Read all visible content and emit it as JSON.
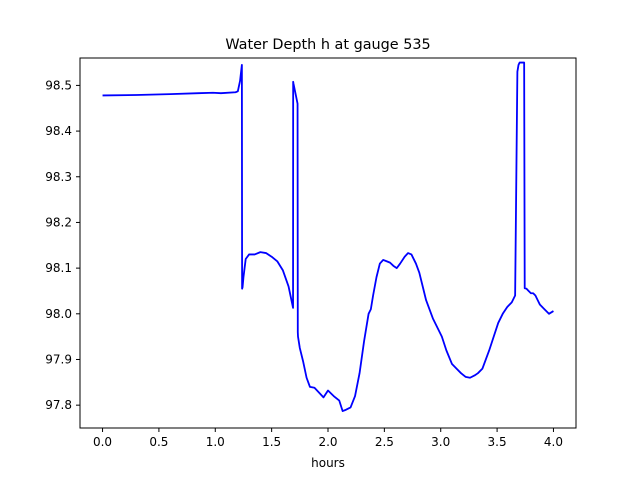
{
  "chart_data": {
    "type": "line",
    "title": "Water Depth h at gauge 535",
    "xlabel": "hours",
    "ylabel": "",
    "xlim": [
      -0.2,
      4.2
    ],
    "ylim": [
      97.75,
      98.56
    ],
    "xticks": [
      0.0,
      0.5,
      1.0,
      1.5,
      2.0,
      2.5,
      3.0,
      3.5,
      4.0
    ],
    "xtick_labels": [
      "0.0",
      "0.5",
      "1.0",
      "1.5",
      "2.0",
      "2.5",
      "3.0",
      "3.5",
      "4.0"
    ],
    "yticks": [
      97.8,
      97.9,
      98.0,
      98.1,
      98.2,
      98.3,
      98.4,
      98.5
    ],
    "ytick_labels": [
      "97.8",
      "97.9",
      "98.0",
      "98.1",
      "98.2",
      "98.3",
      "98.4",
      "98.5"
    ],
    "grid": false,
    "series": [
      {
        "color": "#0000ff",
        "x": [
          0.0,
          0.3,
          0.6,
          0.85,
          0.98,
          1.05,
          1.18,
          1.2,
          1.22,
          1.236,
          1.238,
          1.242,
          1.25,
          1.27,
          1.3,
          1.35,
          1.4,
          1.45,
          1.5,
          1.55,
          1.6,
          1.65,
          1.69,
          1.691,
          1.693,
          1.73,
          1.732,
          1.734,
          1.75,
          1.78,
          1.81,
          1.84,
          1.88,
          1.93,
          1.96,
          2.0,
          2.05,
          2.1,
          2.13,
          2.16,
          2.2,
          2.24,
          2.28,
          2.32,
          2.36,
          2.38,
          2.4,
          2.43,
          2.46,
          2.49,
          2.52,
          2.55,
          2.58,
          2.61,
          2.64,
          2.68,
          2.71,
          2.74,
          2.78,
          2.81,
          2.84,
          2.87,
          2.9,
          2.93,
          2.97,
          3.01,
          3.05,
          3.1,
          3.14,
          3.18,
          3.22,
          3.26,
          3.3,
          3.33,
          3.37,
          3.4,
          3.43,
          3.47,
          3.51,
          3.55,
          3.59,
          3.63,
          3.66,
          3.68,
          3.69,
          3.7,
          3.72,
          3.74,
          3.745,
          3.76,
          3.78,
          3.8,
          3.82,
          3.84,
          3.86,
          3.88,
          3.92,
          3.96,
          4.0
        ],
        "y": [
          98.478,
          98.479,
          98.481,
          98.483,
          98.484,
          98.483,
          98.485,
          98.487,
          98.51,
          98.545,
          98.055,
          98.058,
          98.08,
          98.12,
          98.13,
          98.13,
          98.135,
          98.133,
          98.125,
          98.115,
          98.095,
          98.06,
          98.013,
          98.508,
          98.505,
          98.46,
          97.96,
          97.95,
          97.925,
          97.895,
          97.86,
          97.84,
          97.838,
          97.825,
          97.817,
          97.832,
          97.82,
          97.81,
          97.787,
          97.79,
          97.795,
          97.82,
          97.87,
          97.94,
          98.0,
          98.01,
          98.04,
          98.08,
          98.11,
          98.118,
          98.115,
          98.112,
          98.105,
          98.1,
          98.11,
          98.125,
          98.133,
          98.13,
          98.11,
          98.09,
          98.06,
          98.03,
          98.01,
          97.99,
          97.97,
          97.95,
          97.92,
          97.89,
          97.88,
          97.87,
          97.862,
          97.86,
          97.865,
          97.87,
          97.88,
          97.9,
          97.92,
          97.95,
          97.98,
          98.0,
          98.015,
          98.025,
          98.04,
          98.53,
          98.545,
          98.55,
          98.55,
          98.55,
          98.056,
          98.055,
          98.05,
          98.045,
          98.045,
          98.04,
          98.03,
          98.02,
          98.01,
          98.0,
          98.006
        ]
      }
    ]
  }
}
